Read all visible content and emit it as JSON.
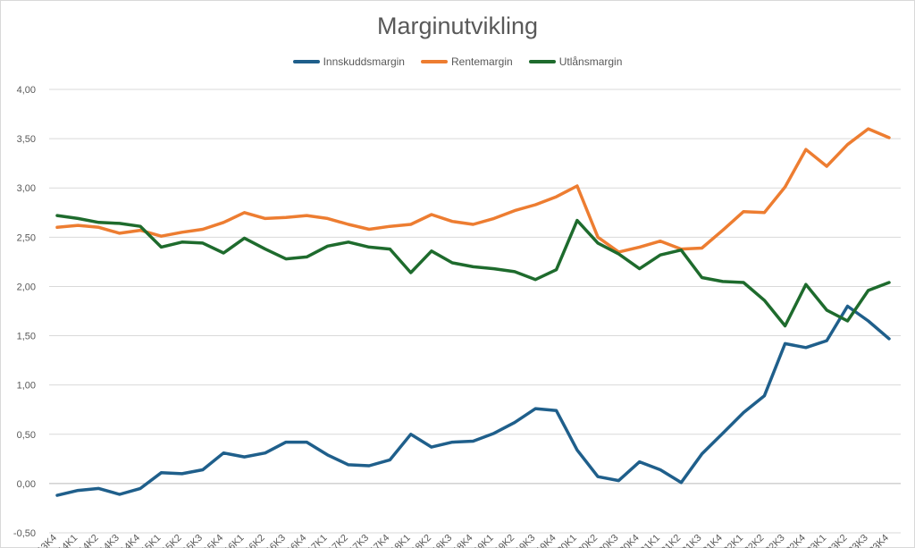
{
  "chart_data": {
    "type": "line",
    "title": "Marginutvikling",
    "ylim": [
      -0.5,
      4.0
    ],
    "yticks": [
      "-0,50",
      "0,00",
      "0,50",
      "1,00",
      "1,50",
      "2,00",
      "2,50",
      "3,00",
      "3,50",
      "4,00"
    ],
    "grid": true,
    "legend_position": "top",
    "categories": [
      "2013K4",
      "2014K1",
      "2014K2",
      "2014K3",
      "2014K4",
      "2015K1",
      "2015K2",
      "2015K3",
      "2015K4",
      "2016K1",
      "2016K2",
      "2016K3",
      "2016K4",
      "2017K1",
      "2017K2",
      "2017K3",
      "2017K4",
      "2018K1",
      "2018K2",
      "2018K3",
      "2018K4",
      "2019K1",
      "2019K2",
      "2019K3",
      "2019K4",
      "2020K1",
      "2020K2",
      "2020K3",
      "2020K4",
      "2021K1",
      "2021K2",
      "2021K3",
      "2021K4",
      "2022K1",
      "2022K2",
      "2022K3",
      "2022K4",
      "2023K1",
      "2023K2",
      "2023K3",
      "2023K4"
    ],
    "series": [
      {
        "name": "Innskuddsmargin",
        "color": "#1f5f8b",
        "values": [
          -0.12,
          -0.07,
          -0.05,
          -0.11,
          -0.05,
          0.11,
          0.1,
          0.14,
          0.31,
          0.27,
          0.31,
          0.42,
          0.42,
          0.29,
          0.19,
          0.18,
          0.24,
          0.5,
          0.37,
          0.42,
          0.43,
          0.51,
          0.62,
          0.76,
          0.74,
          0.34,
          0.07,
          0.03,
          0.22,
          0.14,
          0.01,
          0.3,
          0.51,
          0.72,
          0.89,
          1.42,
          1.38,
          1.45,
          1.8,
          1.65,
          1.47
        ]
      },
      {
        "name": "Rentemargin",
        "color": "#ed7d31",
        "values": [
          2.6,
          2.62,
          2.6,
          2.54,
          2.57,
          2.51,
          2.55,
          2.58,
          2.65,
          2.75,
          2.69,
          2.7,
          2.72,
          2.69,
          2.63,
          2.58,
          2.61,
          2.63,
          2.73,
          2.66,
          2.63,
          2.69,
          2.77,
          2.83,
          2.91,
          3.02,
          2.5,
          2.35,
          2.4,
          2.46,
          2.38,
          2.39,
          2.57,
          2.76,
          2.75,
          3.01,
          3.39,
          3.22,
          3.44,
          3.6,
          3.51
        ]
      },
      {
        "name": "Utlånsmargin",
        "color": "#1e6b2d",
        "values": [
          2.72,
          2.69,
          2.65,
          2.64,
          2.61,
          2.4,
          2.45,
          2.44,
          2.34,
          2.49,
          2.38,
          2.28,
          2.3,
          2.41,
          2.45,
          2.4,
          2.38,
          2.14,
          2.36,
          2.24,
          2.2,
          2.18,
          2.15,
          2.07,
          2.17,
          2.67,
          2.44,
          2.33,
          2.18,
          2.32,
          2.37,
          2.09,
          2.05,
          2.04,
          1.86,
          1.6,
          2.02,
          1.76,
          1.65,
          1.96,
          2.04
        ]
      }
    ]
  }
}
